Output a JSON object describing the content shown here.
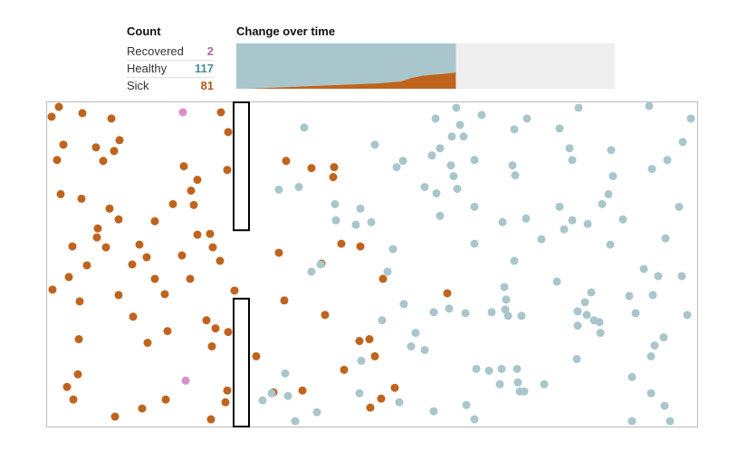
{
  "count_title": "Count",
  "change_title": "Change over time",
  "counts": [
    {
      "label": "Recovered",
      "value": "2",
      "color": "#b565a7"
    },
    {
      "label": "Healthy",
      "value": "117",
      "color": "#4a8a95"
    },
    {
      "label": "Sick",
      "value": "81",
      "color": "#b5591a"
    }
  ],
  "colors": {
    "healthy": "#a8c6cb",
    "sick": "#c0631c",
    "recovered": "#d88fcf",
    "chart_remaining": "#eeeeee",
    "wall": "#000000",
    "border": "#bbbbbb"
  },
  "chart_data": [
    {
      "type": "area",
      "title": "Change over time",
      "stacked": true,
      "progress": 0.58,
      "x": [
        0,
        0.05,
        0.1,
        0.15,
        0.2,
        0.25,
        0.3,
        0.35,
        0.4,
        0.45,
        0.5,
        0.55,
        0.6,
        0.65,
        0.7,
        0.75,
        0.8,
        0.85,
        0.9,
        0.95,
        1.0
      ],
      "series": [
        {
          "name": "Sick",
          "values": [
            0,
            0,
            1,
            2,
            3,
            4,
            5,
            6,
            7,
            8,
            9,
            10,
            11,
            12,
            14,
            16,
            24,
            29,
            31,
            33,
            36
          ]
        },
        {
          "name": "Healthy",
          "values": [
            100,
            100,
            99,
            98,
            97,
            96,
            95,
            94,
            93,
            92,
            91,
            90,
            89,
            88,
            86,
            84,
            76,
            71,
            69,
            67,
            64
          ]
        }
      ],
      "ylim": [
        0,
        100
      ]
    },
    {
      "type": "scatter",
      "title": "",
      "xlim": [
        0,
        718
      ],
      "ylim": [
        0,
        360
      ],
      "walls": [
        {
          "x": 206,
          "y_from": 0,
          "y_to": 142
        },
        {
          "x": 206,
          "y_from": 218,
          "y_to": 360
        }
      ],
      "points": [
        {
          "x": 5,
          "y": 16,
          "s": "sick"
        },
        {
          "x": 13,
          "y": 5,
          "s": "sick"
        },
        {
          "x": 39,
          "y": 12,
          "s": "sick"
        },
        {
          "x": 71,
          "y": 18,
          "s": "sick"
        },
        {
          "x": 150,
          "y": 11,
          "s": "recovered"
        },
        {
          "x": 192,
          "y": 11,
          "s": "sick"
        },
        {
          "x": 200,
          "y": 33,
          "s": "sick"
        },
        {
          "x": 18,
          "y": 47,
          "s": "sick"
        },
        {
          "x": 54,
          "y": 50,
          "s": "sick"
        },
        {
          "x": 80,
          "y": 42,
          "s": "sick"
        },
        {
          "x": 74,
          "y": 54,
          "s": "sick"
        },
        {
          "x": 62,
          "y": 65,
          "s": "sick"
        },
        {
          "x": 11,
          "y": 64,
          "s": "sick"
        },
        {
          "x": 151,
          "y": 71,
          "s": "sick"
        },
        {
          "x": 199,
          "y": 75,
          "s": "sick"
        },
        {
          "x": 166,
          "y": 86,
          "s": "sick"
        },
        {
          "x": 159,
          "y": 98,
          "s": "sick"
        },
        {
          "x": 15,
          "y": 102,
          "s": "sick"
        },
        {
          "x": 38,
          "y": 107,
          "s": "sick"
        },
        {
          "x": 139,
          "y": 113,
          "s": "sick"
        },
        {
          "x": 162,
          "y": 114,
          "s": "sick"
        },
        {
          "x": 69,
          "y": 118,
          "s": "sick"
        },
        {
          "x": 79,
          "y": 130,
          "s": "sick"
        },
        {
          "x": 119,
          "y": 132,
          "s": "sick"
        },
        {
          "x": 56,
          "y": 140,
          "s": "sick"
        },
        {
          "x": 55,
          "y": 150,
          "s": "sick"
        },
        {
          "x": 166,
          "y": 147,
          "s": "sick"
        },
        {
          "x": 180,
          "y": 146,
          "s": "sick"
        },
        {
          "x": 28,
          "y": 160,
          "s": "sick"
        },
        {
          "x": 65,
          "y": 161,
          "s": "sick"
        },
        {
          "x": 102,
          "y": 158,
          "s": "sick"
        },
        {
          "x": 183,
          "y": 161,
          "s": "sick"
        },
        {
          "x": 110,
          "y": 172,
          "s": "sick"
        },
        {
          "x": 149,
          "y": 170,
          "s": "sick"
        },
        {
          "x": 191,
          "y": 176,
          "s": "sick"
        },
        {
          "x": 44,
          "y": 181,
          "s": "sick"
        },
        {
          "x": 94,
          "y": 180,
          "s": "sick"
        },
        {
          "x": 24,
          "y": 194,
          "s": "sick"
        },
        {
          "x": 119,
          "y": 196,
          "s": "sick"
        },
        {
          "x": 158,
          "y": 196,
          "s": "sick"
        },
        {
          "x": 6,
          "y": 208,
          "s": "sick"
        },
        {
          "x": 79,
          "y": 214,
          "s": "sick"
        },
        {
          "x": 130,
          "y": 213,
          "s": "sick"
        },
        {
          "x": 207,
          "y": 209,
          "s": "sick"
        },
        {
          "x": 36,
          "y": 221,
          "s": "sick"
        },
        {
          "x": 95,
          "y": 238,
          "s": "sick"
        },
        {
          "x": 176,
          "y": 242,
          "s": "sick"
        },
        {
          "x": 186,
          "y": 251,
          "s": "sick"
        },
        {
          "x": 133,
          "y": 254,
          "s": "sick"
        },
        {
          "x": 35,
          "y": 263,
          "s": "sick"
        },
        {
          "x": 111,
          "y": 267,
          "s": "sick"
        },
        {
          "x": 182,
          "y": 271,
          "s": "sick"
        },
        {
          "x": 200,
          "y": 255,
          "s": "sick"
        },
        {
          "x": 231,
          "y": 282,
          "s": "sick"
        },
        {
          "x": 34,
          "y": 302,
          "s": "sick"
        },
        {
          "x": 153,
          "y": 309,
          "s": "recovered"
        },
        {
          "x": 22,
          "y": 316,
          "s": "sick"
        },
        {
          "x": 29,
          "y": 330,
          "s": "sick"
        },
        {
          "x": 131,
          "y": 330,
          "s": "sick"
        },
        {
          "x": 105,
          "y": 340,
          "s": "sick"
        },
        {
          "x": 199,
          "y": 320,
          "s": "sick"
        },
        {
          "x": 197,
          "y": 333,
          "s": "sick"
        },
        {
          "x": 75,
          "y": 349,
          "s": "sick"
        },
        {
          "x": 181,
          "y": 352,
          "s": "sick"
        },
        {
          "x": 264,
          "y": 65,
          "s": "sick"
        },
        {
          "x": 292,
          "y": 73,
          "s": "sick"
        },
        {
          "x": 317,
          "y": 72,
          "s": "sick"
        },
        {
          "x": 316,
          "y": 83,
          "s": "sick"
        },
        {
          "x": 303,
          "y": 179,
          "s": "sick"
        },
        {
          "x": 325,
          "y": 157,
          "s": "sick"
        },
        {
          "x": 346,
          "y": 160,
          "s": "sick"
        },
        {
          "x": 256,
          "y": 167,
          "s": "sick"
        },
        {
          "x": 262,
          "y": 220,
          "s": "sick"
        },
        {
          "x": 307,
          "y": 236,
          "s": "sick"
        },
        {
          "x": 371,
          "y": 196,
          "s": "sick"
        },
        {
          "x": 442,
          "y": 212,
          "s": "sick"
        },
        {
          "x": 345,
          "y": 265,
          "s": "sick"
        },
        {
          "x": 356,
          "y": 263,
          "s": "sick"
        },
        {
          "x": 362,
          "y": 282,
          "s": "sick"
        },
        {
          "x": 328,
          "y": 297,
          "s": "sick"
        },
        {
          "x": 250,
          "y": 322,
          "s": "sick"
        },
        {
          "x": 282,
          "y": 320,
          "s": "sick"
        },
        {
          "x": 369,
          "y": 329,
          "s": "sick"
        },
        {
          "x": 384,
          "y": 317,
          "s": "sick"
        },
        {
          "x": 357,
          "y": 339,
          "s": "sick"
        },
        {
          "x": 284,
          "y": 28,
          "s": "healthy"
        },
        {
          "x": 362,
          "y": 47,
          "s": "healthy"
        },
        {
          "x": 452,
          "y": 6,
          "s": "healthy"
        },
        {
          "x": 429,
          "y": 18,
          "s": "healthy"
        },
        {
          "x": 480,
          "y": 14,
          "s": "healthy"
        },
        {
          "x": 456,
          "y": 25,
          "s": "healthy"
        },
        {
          "x": 447,
          "y": 38,
          "s": "healthy"
        },
        {
          "x": 460,
          "y": 38,
          "s": "healthy"
        },
        {
          "x": 434,
          "y": 51,
          "s": "healthy"
        },
        {
          "x": 425,
          "y": 59,
          "s": "healthy"
        },
        {
          "x": 386,
          "y": 72,
          "s": "healthy"
        },
        {
          "x": 393,
          "y": 65,
          "s": "healthy"
        },
        {
          "x": 446,
          "y": 70,
          "s": "healthy"
        },
        {
          "x": 472,
          "y": 64,
          "s": "healthy"
        },
        {
          "x": 256,
          "y": 97,
          "s": "healthy"
        },
        {
          "x": 278,
          "y": 94,
          "s": "healthy"
        },
        {
          "x": 417,
          "y": 94,
          "s": "healthy"
        },
        {
          "x": 430,
          "y": 101,
          "s": "healthy"
        },
        {
          "x": 449,
          "y": 82,
          "s": "healthy"
        },
        {
          "x": 453,
          "y": 96,
          "s": "healthy"
        },
        {
          "x": 514,
          "y": 70,
          "s": "healthy"
        },
        {
          "x": 517,
          "y": 81,
          "s": "healthy"
        },
        {
          "x": 530,
          "y": 18,
          "s": "healthy"
        },
        {
          "x": 516,
          "y": 30,
          "s": "healthy"
        },
        {
          "x": 587,
          "y": 6,
          "s": "healthy"
        },
        {
          "x": 566,
          "y": 29,
          "s": "healthy"
        },
        {
          "x": 577,
          "y": 51,
          "s": "healthy"
        },
        {
          "x": 580,
          "y": 64,
          "s": "healthy"
        },
        {
          "x": 623,
          "y": 53,
          "s": "healthy"
        },
        {
          "x": 625,
          "y": 82,
          "s": "healthy"
        },
        {
          "x": 665,
          "y": 4,
          "s": "healthy"
        },
        {
          "x": 711,
          "y": 18,
          "s": "healthy"
        },
        {
          "x": 702,
          "y": 44,
          "s": "healthy"
        },
        {
          "x": 685,
          "y": 64,
          "s": "healthy"
        },
        {
          "x": 668,
          "y": 74,
          "s": "healthy"
        },
        {
          "x": 318,
          "y": 113,
          "s": "healthy"
        },
        {
          "x": 346,
          "y": 118,
          "s": "healthy"
        },
        {
          "x": 319,
          "y": 131,
          "s": "healthy"
        },
        {
          "x": 341,
          "y": 136,
          "s": "healthy"
        },
        {
          "x": 358,
          "y": 133,
          "s": "healthy"
        },
        {
          "x": 434,
          "y": 126,
          "s": "healthy"
        },
        {
          "x": 472,
          "y": 116,
          "s": "healthy"
        },
        {
          "x": 503,
          "y": 133,
          "s": "healthy"
        },
        {
          "x": 529,
          "y": 129,
          "s": "healthy"
        },
        {
          "x": 566,
          "y": 116,
          "s": "healthy"
        },
        {
          "x": 580,
          "y": 131,
          "s": "healthy"
        },
        {
          "x": 571,
          "y": 141,
          "s": "healthy"
        },
        {
          "x": 597,
          "y": 135,
          "s": "healthy"
        },
        {
          "x": 613,
          "y": 113,
          "s": "healthy"
        },
        {
          "x": 620,
          "y": 102,
          "s": "healthy"
        },
        {
          "x": 636,
          "y": 130,
          "s": "healthy"
        },
        {
          "x": 546,
          "y": 152,
          "s": "healthy"
        },
        {
          "x": 472,
          "y": 157,
          "s": "healthy"
        },
        {
          "x": 382,
          "y": 163,
          "s": "healthy"
        },
        {
          "x": 516,
          "y": 176,
          "s": "healthy"
        },
        {
          "x": 302,
          "y": 180,
          "s": "healthy"
        },
        {
          "x": 292,
          "y": 188,
          "s": "healthy"
        },
        {
          "x": 376,
          "y": 188,
          "s": "healthy"
        },
        {
          "x": 622,
          "y": 158,
          "s": "healthy"
        },
        {
          "x": 683,
          "y": 151,
          "s": "healthy"
        },
        {
          "x": 698,
          "y": 116,
          "s": "healthy"
        },
        {
          "x": 659,
          "y": 185,
          "s": "healthy"
        },
        {
          "x": 675,
          "y": 193,
          "s": "healthy"
        },
        {
          "x": 563,
          "y": 199,
          "s": "healthy"
        },
        {
          "x": 505,
          "y": 205,
          "s": "healthy"
        },
        {
          "x": 507,
          "y": 219,
          "s": "healthy"
        },
        {
          "x": 601,
          "y": 211,
          "s": "healthy"
        },
        {
          "x": 594,
          "y": 222,
          "s": "healthy"
        },
        {
          "x": 669,
          "y": 214,
          "s": "healthy"
        },
        {
          "x": 701,
          "y": 193,
          "s": "healthy"
        },
        {
          "x": 394,
          "y": 224,
          "s": "healthy"
        },
        {
          "x": 427,
          "y": 233,
          "s": "healthy"
        },
        {
          "x": 444,
          "y": 229,
          "s": "healthy"
        },
        {
          "x": 462,
          "y": 234,
          "s": "healthy"
        },
        {
          "x": 491,
          "y": 233,
          "s": "healthy"
        },
        {
          "x": 506,
          "y": 230,
          "s": "healthy"
        },
        {
          "x": 509,
          "y": 237,
          "s": "healthy"
        },
        {
          "x": 524,
          "y": 237,
          "s": "healthy"
        },
        {
          "x": 586,
          "y": 232,
          "s": "healthy"
        },
        {
          "x": 596,
          "y": 236,
          "s": "healthy"
        },
        {
          "x": 604,
          "y": 242,
          "s": "healthy"
        },
        {
          "x": 586,
          "y": 248,
          "s": "healthy"
        },
        {
          "x": 610,
          "y": 244,
          "s": "healthy"
        },
        {
          "x": 643,
          "y": 215,
          "s": "healthy"
        },
        {
          "x": 650,
          "y": 234,
          "s": "healthy"
        },
        {
          "x": 707,
          "y": 236,
          "s": "healthy"
        },
        {
          "x": 370,
          "y": 242,
          "s": "healthy"
        },
        {
          "x": 407,
          "y": 256,
          "s": "healthy"
        },
        {
          "x": 402,
          "y": 271,
          "s": "healthy"
        },
        {
          "x": 417,
          "y": 275,
          "s": "healthy"
        },
        {
          "x": 611,
          "y": 256,
          "s": "healthy"
        },
        {
          "x": 681,
          "y": 261,
          "s": "healthy"
        },
        {
          "x": 671,
          "y": 270,
          "s": "healthy"
        },
        {
          "x": 667,
          "y": 282,
          "s": "healthy"
        },
        {
          "x": 585,
          "y": 285,
          "s": "healthy"
        },
        {
          "x": 347,
          "y": 287,
          "s": "healthy"
        },
        {
          "x": 263,
          "y": 301,
          "s": "healthy"
        },
        {
          "x": 474,
          "y": 296,
          "s": "healthy"
        },
        {
          "x": 488,
          "y": 298,
          "s": "healthy"
        },
        {
          "x": 502,
          "y": 296,
          "s": "healthy"
        },
        {
          "x": 519,
          "y": 296,
          "s": "healthy"
        },
        {
          "x": 500,
          "y": 313,
          "s": "healthy"
        },
        {
          "x": 520,
          "y": 311,
          "s": "healthy"
        },
        {
          "x": 522,
          "y": 321,
          "s": "healthy"
        },
        {
          "x": 549,
          "y": 313,
          "s": "healthy"
        },
        {
          "x": 527,
          "y": 321,
          "s": "healthy"
        },
        {
          "x": 646,
          "y": 305,
          "s": "healthy"
        },
        {
          "x": 238,
          "y": 331,
          "s": "healthy"
        },
        {
          "x": 248,
          "y": 323,
          "s": "healthy"
        },
        {
          "x": 266,
          "y": 326,
          "s": "healthy"
        },
        {
          "x": 298,
          "y": 344,
          "s": "healthy"
        },
        {
          "x": 345,
          "y": 323,
          "s": "healthy"
        },
        {
          "x": 389,
          "y": 333,
          "s": "healthy"
        },
        {
          "x": 427,
          "y": 343,
          "s": "healthy"
        },
        {
          "x": 463,
          "y": 336,
          "s": "healthy"
        },
        {
          "x": 472,
          "y": 352,
          "s": "healthy"
        },
        {
          "x": 667,
          "y": 323,
          "s": "healthy"
        },
        {
          "x": 682,
          "y": 337,
          "s": "healthy"
        },
        {
          "x": 274,
          "y": 354,
          "s": "healthy"
        },
        {
          "x": 646,
          "y": 354,
          "s": "healthy"
        },
        {
          "x": 688,
          "y": 354,
          "s": "healthy"
        }
      ]
    }
  ]
}
